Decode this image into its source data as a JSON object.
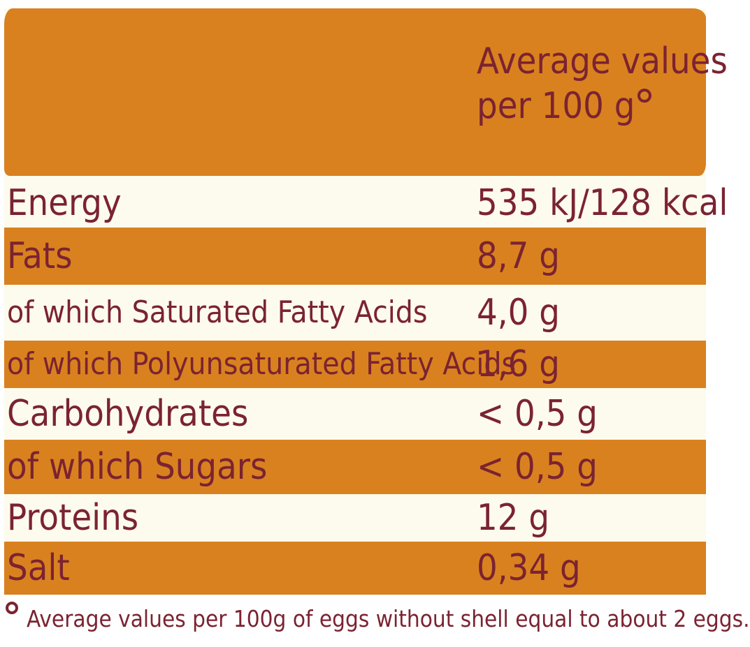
{
  "colors": {
    "orange": "#d9811f",
    "cream": "#fdfbee",
    "text": "#7b2331"
  },
  "header": {
    "line1": "Average values",
    "line2": "per 100 g"
  },
  "rows": [
    {
      "label": "Energy",
      "value": "535 kJ/128 kcal",
      "shade": "cream"
    },
    {
      "label": "Fats",
      "value": "8,7 g",
      "shade": "orange"
    },
    {
      "label": "of which Saturated Fatty Acids",
      "value": "4,0 g",
      "shade": "cream"
    },
    {
      "label": "of which Polyunsaturated Fatty Acids",
      "value": "1,6 g",
      "shade": "orange"
    },
    {
      "label": "Carbohydrates",
      "value": "< 0,5 g",
      "shade": "cream"
    },
    {
      "label": "of which Sugars",
      "value": "< 0,5 g",
      "shade": "orange"
    },
    {
      "label": "Proteins",
      "value": "12 g",
      "shade": "cream"
    },
    {
      "label": "Salt",
      "value": "0,34 g",
      "shade": "orange"
    }
  ],
  "footnote": "Average values per 100g of eggs without shell equal to about 2 eggs."
}
